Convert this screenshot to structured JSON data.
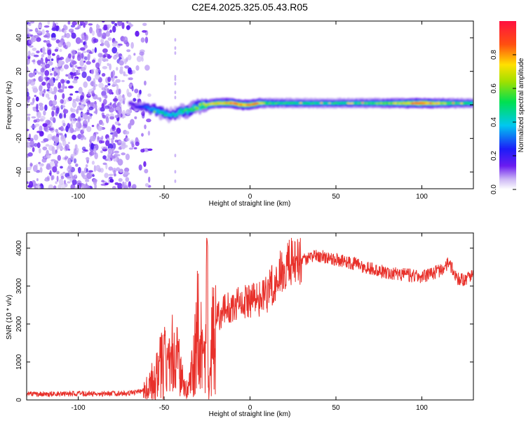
{
  "title": "C2E4.2025.325.05.43.R05",
  "colors": {
    "snr_line": "#e8302a",
    "axis": "#000000"
  },
  "chart_data": [
    {
      "type": "heatmap",
      "title": "C2E4.2025.325.05.43.R05",
      "xlabel": "Height of straight line (km)",
      "ylabel": "Frequency (Hz)",
      "xlim": [
        -130,
        130
      ],
      "ylim": [
        -50,
        50
      ],
      "xticks": [
        -100,
        -50,
        0,
        50,
        100
      ],
      "yticks": [
        -40,
        -20,
        0,
        20,
        40
      ],
      "colorbar": {
        "label": "Normalized spectral amplitude",
        "range": [
          0.0,
          1.0
        ],
        "ticks": [
          0.0,
          0.2,
          0.4,
          0.6,
          0.8
        ],
        "tick_labels": [
          "0.0",
          "0.2",
          "0.4",
          "0.6",
          "0.8"
        ]
      },
      "noise_region_x": [
        -130,
        -70
      ],
      "ridge": {
        "x": [
          -70,
          -65,
          -60,
          -55,
          -50,
          -45,
          -40,
          -35,
          -30,
          -25,
          -20,
          -15,
          -10,
          -5,
          0,
          5,
          10,
          20,
          40,
          60,
          80,
          100,
          120,
          130
        ],
        "freq": [
          0,
          -1,
          -2,
          -3,
          -5,
          -6,
          -4,
          -3,
          -1,
          0,
          1,
          1,
          1,
          0,
          0,
          1,
          1,
          1,
          1,
          1,
          1,
          1,
          1,
          1
        ],
        "amplitude": [
          0.15,
          0.2,
          0.3,
          0.4,
          0.45,
          0.4,
          0.5,
          0.55,
          0.6,
          0.7,
          0.75,
          0.8,
          0.85,
          0.85,
          0.8,
          0.8,
          0.55,
          0.5,
          0.5,
          0.5,
          0.6,
          0.9,
          0.55,
          0.5
        ]
      }
    },
    {
      "type": "line",
      "title": "",
      "xlabel": "Height of straight line (km)",
      "ylabel": "SNR (10 * v/v)",
      "xlim": [
        -130,
        130
      ],
      "ylim": [
        0,
        4400
      ],
      "xticks": [
        -100,
        -50,
        0,
        50,
        100
      ],
      "yticks": [
        0,
        1000,
        2000,
        3000,
        4000
      ],
      "series": [
        {
          "name": "SNR",
          "envelope_x": [
            -130,
            -110,
            -90,
            -70,
            -62,
            -58,
            -55,
            -52,
            -50,
            -47,
            -45,
            -42,
            -40,
            -37,
            -35,
            -32,
            -30,
            -28,
            -26,
            -25,
            -24,
            -22,
            -20,
            -15,
            -10,
            -5,
            0,
            5,
            10,
            15,
            20,
            25,
            30,
            35,
            40,
            50,
            60,
            70,
            80,
            90,
            100,
            110,
            115,
            118,
            120,
            125,
            130
          ],
          "envelope_y": [
            150,
            160,
            160,
            170,
            250,
            600,
            1100,
            1500,
            1300,
            1100,
            1600,
            1400,
            700,
            300,
            500,
            1600,
            2500,
            2000,
            900,
            4300,
            100,
            1900,
            2100,
            2400,
            2500,
            2550,
            2600,
            2650,
            2800,
            3200,
            3500,
            3650,
            3700,
            3750,
            3800,
            3700,
            3600,
            3450,
            3350,
            3300,
            3250,
            3400,
            3600,
            3450,
            3200,
            3150,
            3350
          ],
          "noise_amplitude": 180
        }
      ]
    }
  ]
}
